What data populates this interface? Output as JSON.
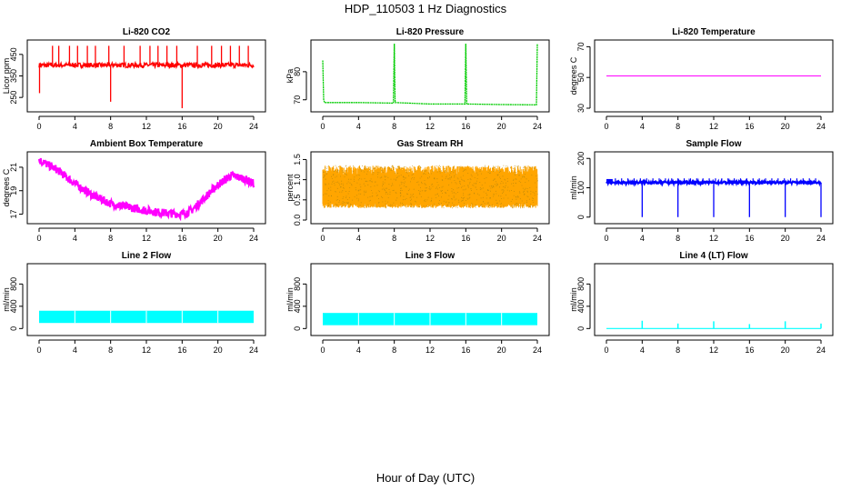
{
  "title": "HDP_110503  1 Hz Diagnostics",
  "xlabel": "Hour of Day (UTC)",
  "chart_data": [
    {
      "type": "line",
      "title": "Li-820 CO2",
      "ylabel": "Licor ppm",
      "color": "#ff0000",
      "xlim": [
        0,
        24
      ],
      "ylim": [
        200,
        500
      ],
      "xticks": [
        0,
        4,
        8,
        12,
        16,
        20,
        24
      ],
      "yticks": [
        250,
        350,
        450
      ],
      "baseline": 400,
      "pattern": "spikes-up",
      "spikes": [
        [
          1.5,
          490
        ],
        [
          2.2,
          490
        ],
        [
          3.4,
          490
        ],
        [
          4.3,
          490
        ],
        [
          5.4,
          490
        ],
        [
          6.3,
          490
        ],
        [
          7.8,
          490
        ],
        [
          8,
          230
        ],
        [
          9.5,
          490
        ],
        [
          11.3,
          490
        ],
        [
          12.4,
          490
        ],
        [
          13.3,
          490
        ],
        [
          14.3,
          490
        ],
        [
          15.4,
          490
        ],
        [
          16,
          200
        ],
        [
          17.7,
          490
        ],
        [
          19.3,
          490
        ],
        [
          20.4,
          490
        ],
        [
          21.4,
          490
        ],
        [
          22.4,
          490
        ],
        [
          23.4,
          490
        ]
      ]
    },
    {
      "type": "line",
      "title": "Li-820 Pressure",
      "ylabel": "kPa",
      "color": "#00cc00",
      "xlim": [
        0,
        24
      ],
      "ylim": [
        67,
        90
      ],
      "xticks": [
        0,
        4,
        8,
        12,
        16,
        20,
        24
      ],
      "yticks": [
        70,
        80
      ],
      "series": [
        {
          "x": [
            0,
            0.1,
            0.2,
            4,
            7.9,
            8,
            8.1,
            12,
            15.9,
            16,
            16.1,
            20,
            23.9,
            24
          ],
          "y": [
            84,
            70,
            69,
            69,
            68.8,
            90,
            69,
            68.5,
            68.5,
            90,
            68.5,
            68.3,
            68.2,
            90
          ]
        }
      ]
    },
    {
      "type": "line",
      "title": "Li-820 Temperature",
      "ylabel": "degrees C",
      "color": "#ff00ff",
      "xlim": [
        0,
        24
      ],
      "ylim": [
        30,
        72
      ],
      "xticks": [
        0,
        4,
        8,
        12,
        16,
        20,
        24
      ],
      "yticks": [
        30,
        50,
        70
      ],
      "series": [
        {
          "x": [
            0,
            24
          ],
          "y": [
            51,
            51
          ]
        }
      ]
    },
    {
      "type": "area",
      "title": "Ambient Box Temperature",
      "ylabel": "degrees C",
      "color": "#ff00ff",
      "xlim": [
        0,
        24
      ],
      "ylim": [
        16.5,
        22
      ],
      "xticks": [
        0,
        4,
        8,
        12,
        16,
        20,
        24
      ],
      "yticks": [
        17,
        19,
        21
      ],
      "band": {
        "x": [
          0,
          2,
          4,
          6,
          8,
          10,
          12,
          14,
          16,
          17,
          18,
          20,
          21.5,
          23,
          24
        ],
        "y": [
          21.6,
          20.8,
          19.6,
          18.6,
          17.9,
          17.6,
          17.3,
          17.1,
          17.0,
          17.3,
          18.0,
          19.5,
          20.3,
          20.0,
          19.6
        ],
        "half_width": 0.35
      }
    },
    {
      "type": "area",
      "title": "Gas Stream RH",
      "ylabel": "percent",
      "color": "#ffa500",
      "xlim": [
        0,
        24
      ],
      "ylim": [
        0,
        1.6
      ],
      "xticks": [
        0,
        4,
        8,
        12,
        16,
        20,
        24
      ],
      "yticks": [
        0.0,
        0.5,
        1.0,
        1.5
      ],
      "band": {
        "x": [
          0,
          24
        ],
        "lower": [
          0.3,
          0.3
        ],
        "upper": [
          1.35,
          1.35
        ]
      }
    },
    {
      "type": "line",
      "title": "Sample Flow",
      "ylabel": "ml/min",
      "color": "#0000ff",
      "xlim": [
        0,
        24
      ],
      "ylim": [
        -10,
        210
      ],
      "xticks": [
        0,
        4,
        8,
        12,
        16,
        20,
        24
      ],
      "yticks": [
        0,
        100,
        200
      ],
      "baseline": 118,
      "dips": [
        4,
        8,
        12,
        16,
        20,
        24
      ],
      "dip_value": 0
    },
    {
      "type": "area",
      "title": "Line 2 Flow",
      "ylabel": "ml/min",
      "color": "#00ffff",
      "xlim": [
        0,
        24
      ],
      "ylim": [
        -60,
        1100
      ],
      "xticks": [
        0,
        4,
        8,
        12,
        16,
        20,
        24
      ],
      "yticks": [
        0,
        400,
        800
      ],
      "band": {
        "x": [
          0,
          24
        ],
        "lower": [
          100,
          100
        ],
        "upper": [
          320,
          320
        ]
      },
      "gaps": [
        4,
        8,
        12,
        16,
        20
      ]
    },
    {
      "type": "area",
      "title": "Line 3 Flow",
      "ylabel": "ml/min",
      "color": "#00ffff",
      "xlim": [
        0,
        24
      ],
      "ylim": [
        -60,
        1100
      ],
      "xticks": [
        0,
        4,
        8,
        12,
        16,
        20,
        24
      ],
      "yticks": [
        0,
        400,
        800
      ],
      "band": {
        "x": [
          0,
          24
        ],
        "lower": [
          60,
          60
        ],
        "upper": [
          280,
          280
        ]
      },
      "gaps": [
        4,
        8,
        12,
        16,
        20
      ]
    },
    {
      "type": "line",
      "title": "Line 4 (LT) Flow",
      "ylabel": "ml/min",
      "color": "#00ffff",
      "xlim": [
        0,
        24
      ],
      "ylim": [
        -60,
        1100
      ],
      "xticks": [
        0,
        4,
        8,
        12,
        16,
        20,
        24
      ],
      "yticks": [
        0,
        400,
        800
      ],
      "baseline": 0,
      "spikes": [
        [
          4,
          140
        ],
        [
          8,
          90
        ],
        [
          12,
          130
        ],
        [
          16,
          80
        ],
        [
          20,
          130
        ],
        [
          24,
          90
        ]
      ]
    }
  ]
}
